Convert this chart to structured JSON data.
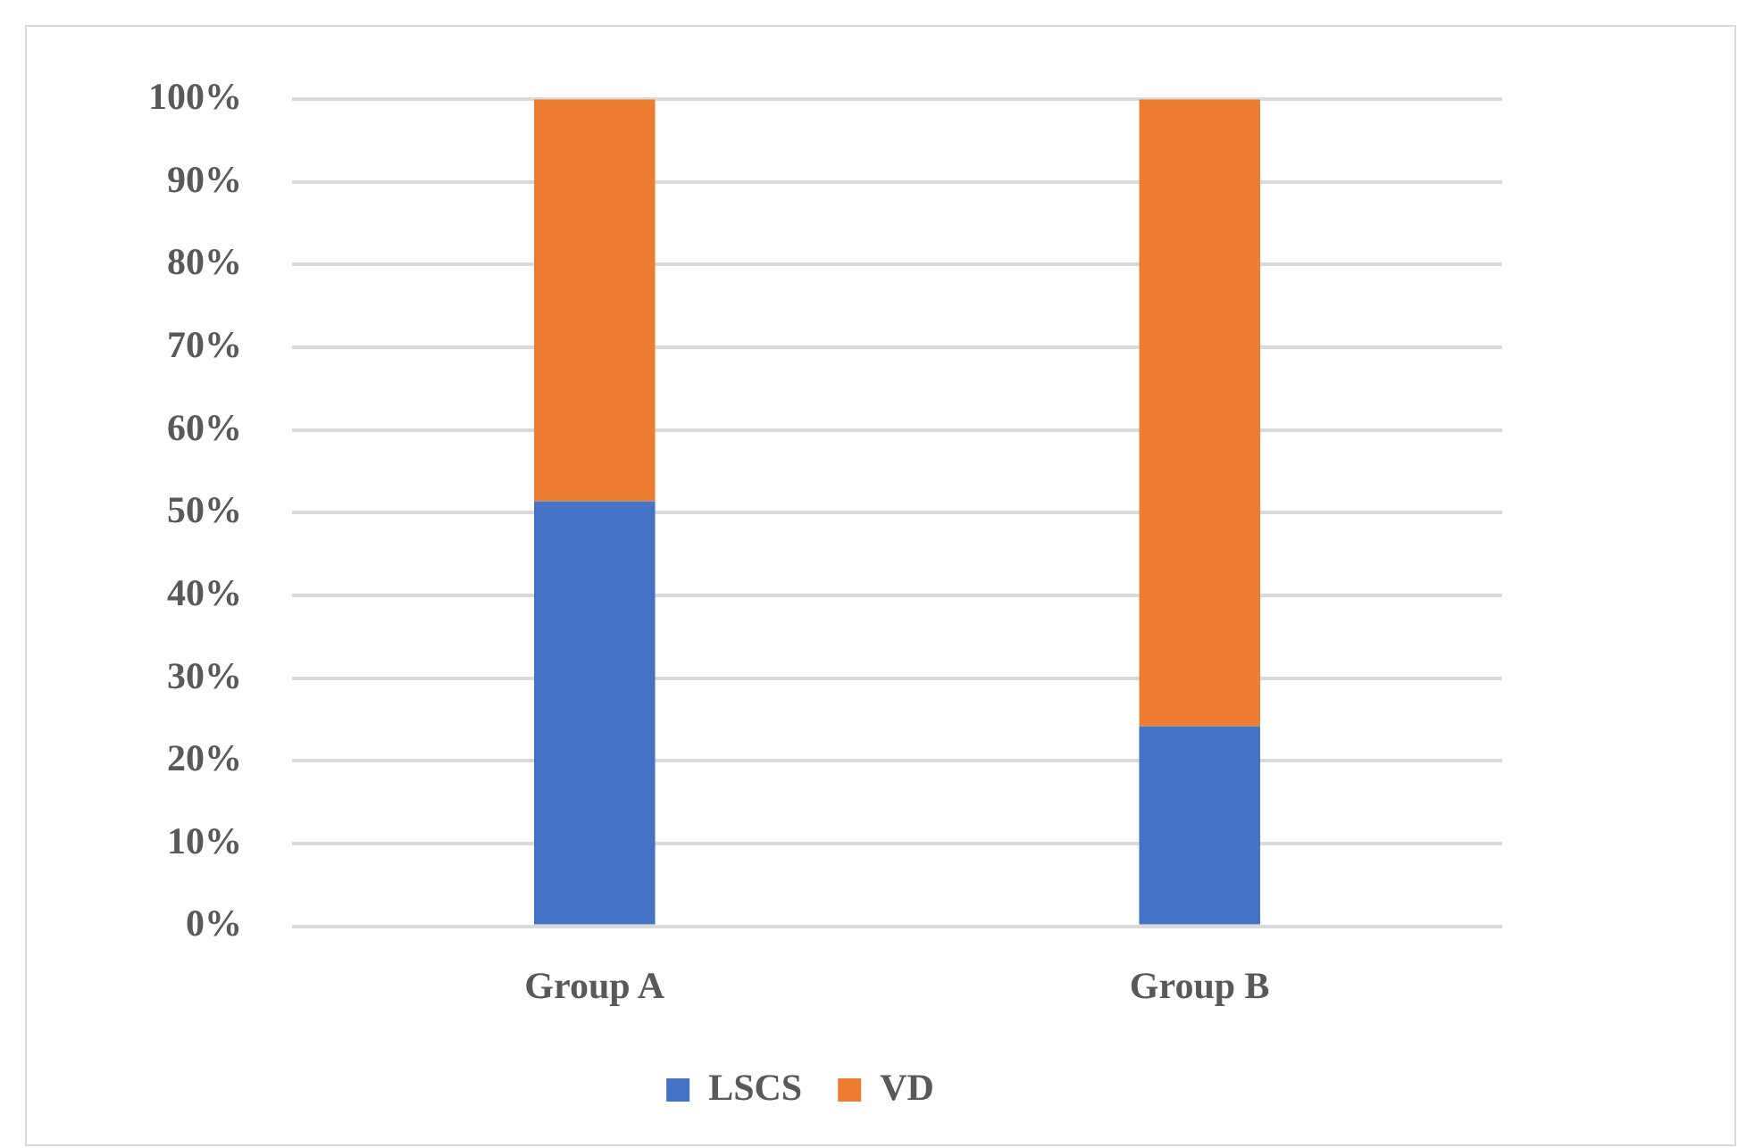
{
  "chart_data": {
    "type": "bar",
    "stacked": true,
    "categories": [
      "Group A",
      "Group B"
    ],
    "series": [
      {
        "name": "LSCS",
        "color": "#4472c4",
        "values": [
          51.4,
          24.2
        ]
      },
      {
        "name": "VD",
        "color": "#ed7d31",
        "values": [
          48.6,
          75.8
        ]
      }
    ],
    "ylim": [
      0,
      100
    ],
    "yticks": [
      {
        "value": 0,
        "label": "0%"
      },
      {
        "value": 10,
        "label": "10%"
      },
      {
        "value": 20,
        "label": "20%"
      },
      {
        "value": 30,
        "label": "30%"
      },
      {
        "value": 40,
        "label": "40%"
      },
      {
        "value": 50,
        "label": "50%"
      },
      {
        "value": 60,
        "label": "60%"
      },
      {
        "value": 70,
        "label": "70%"
      },
      {
        "value": 80,
        "label": "80%"
      },
      {
        "value": 90,
        "label": "90%"
      },
      {
        "value": 100,
        "label": "100%"
      }
    ],
    "grid": "y",
    "legend": "bottom"
  }
}
